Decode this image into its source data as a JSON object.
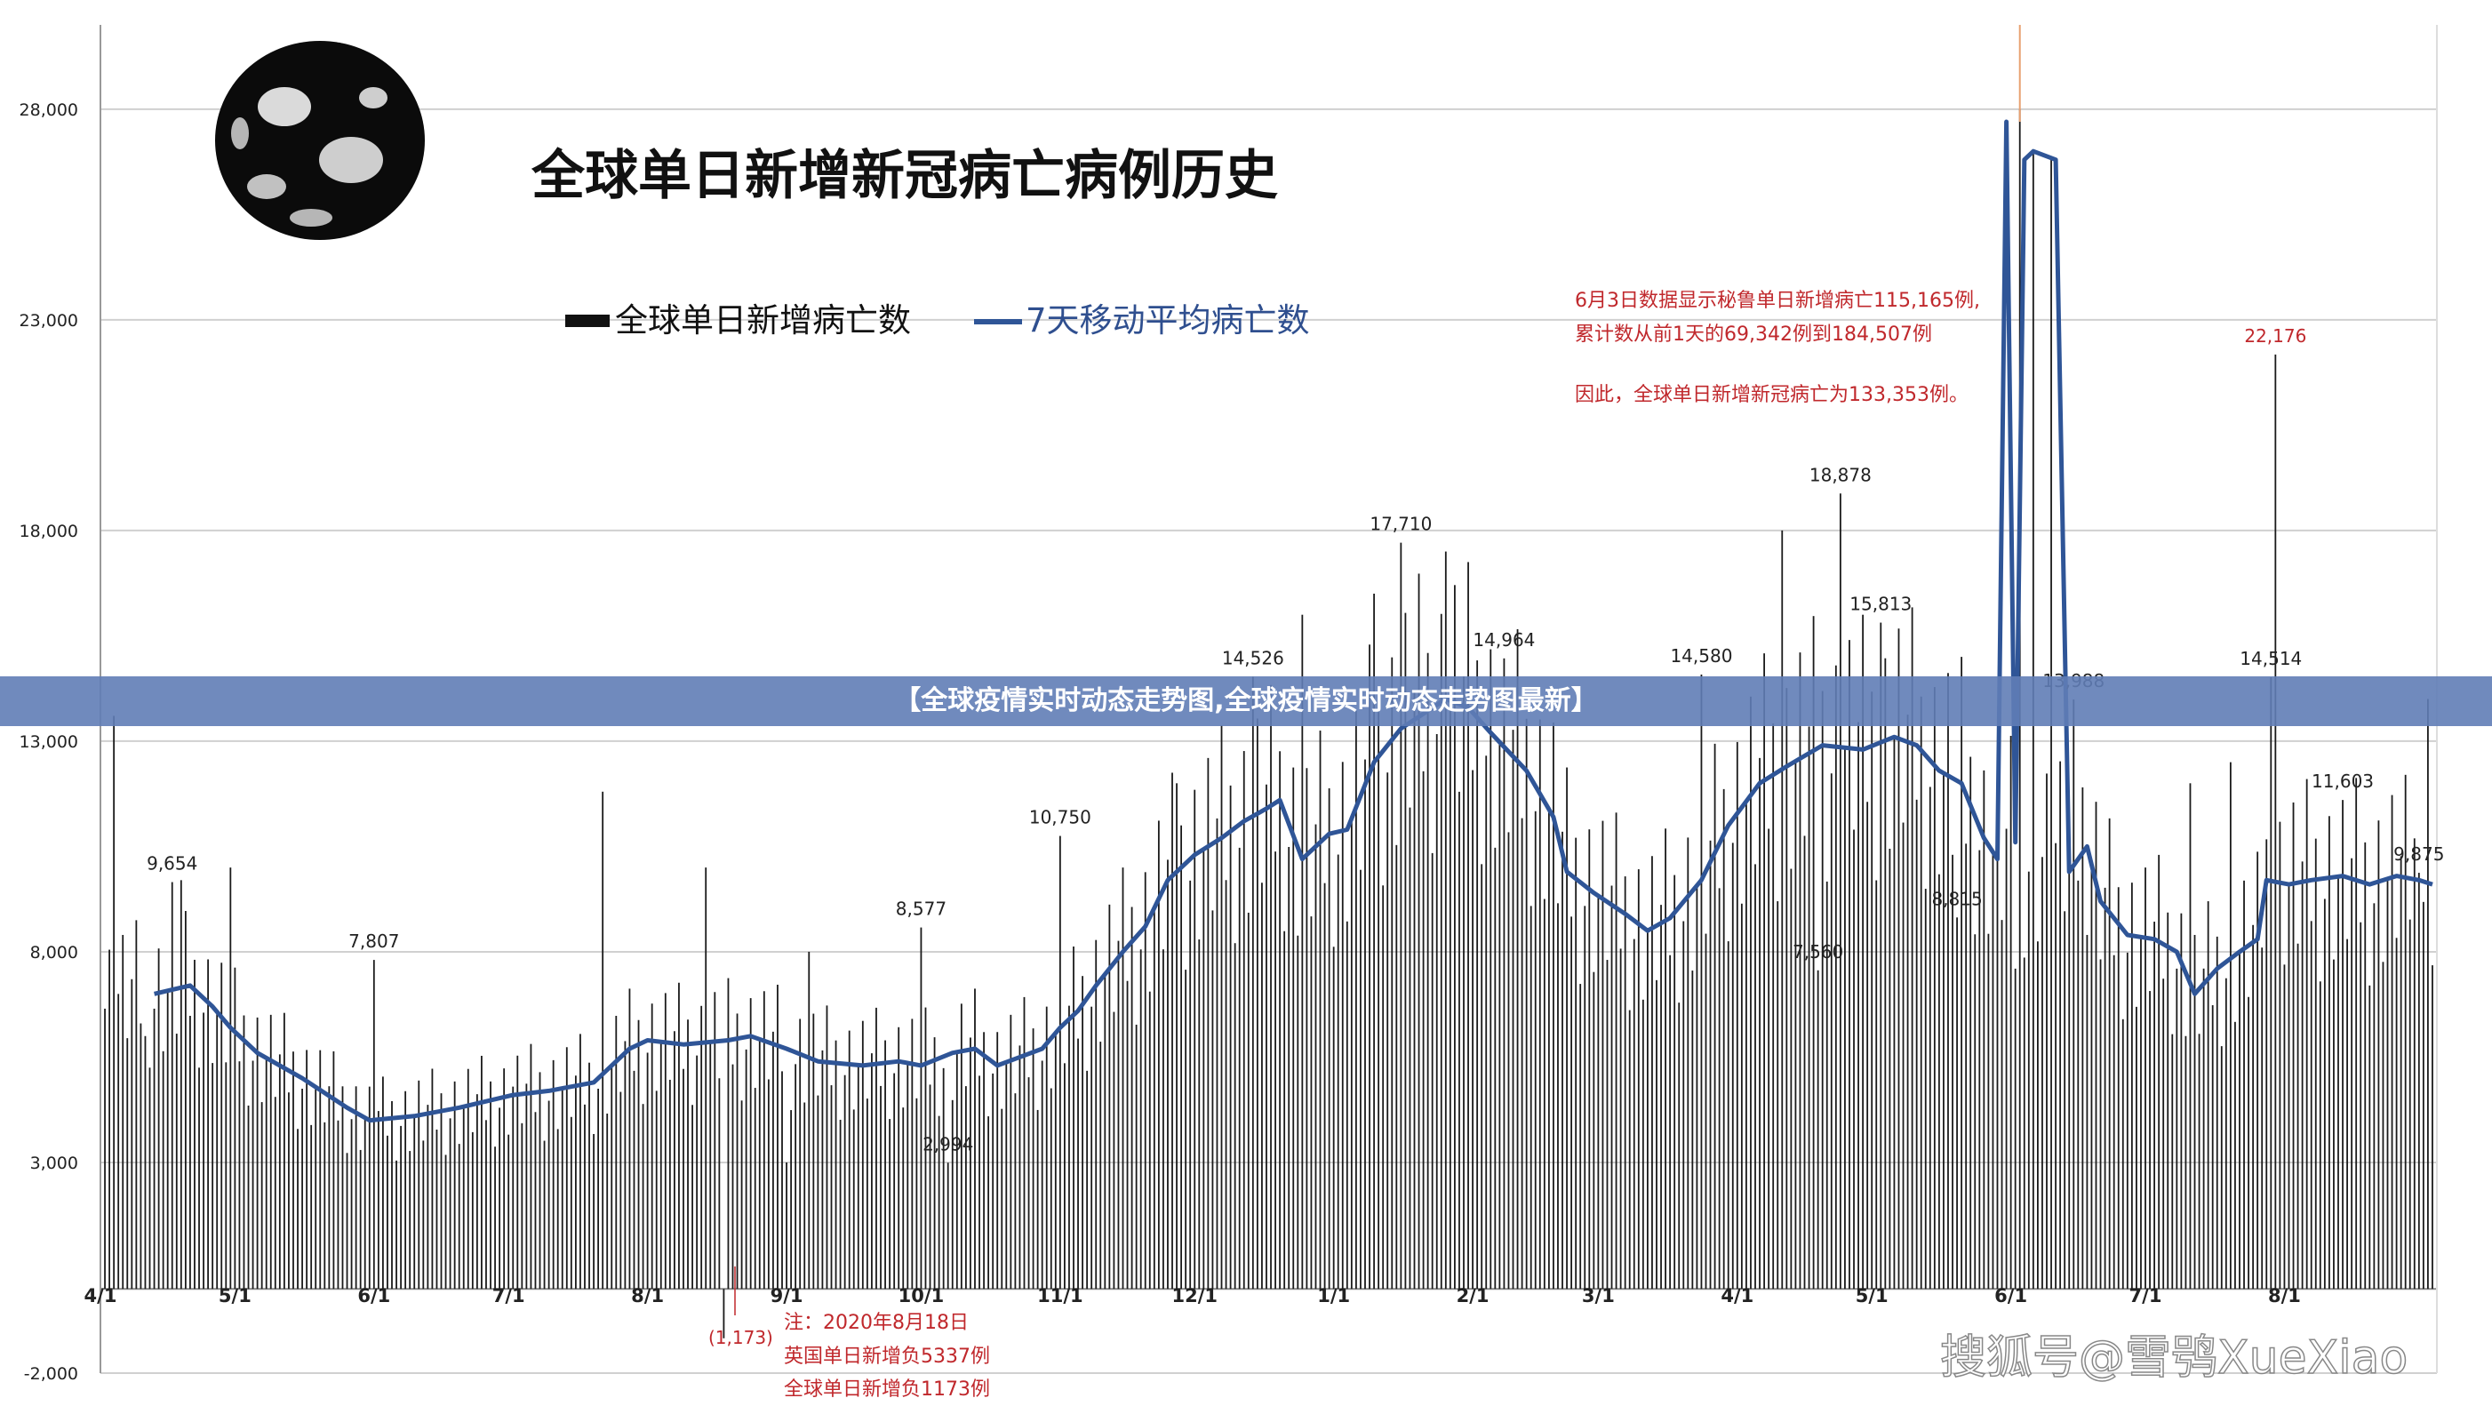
{
  "banner": "【全球疫情实时动态走势图,全球疫情实时动态走势图最新】",
  "chart_title": "全球单日新增新冠病亡病例历史",
  "legend": {
    "bar_label": "全球单日新增病亡数",
    "line_label": "7天移动平均病亡数"
  },
  "watermark": "搜狐号@雪鸮XueXiao",
  "notes": {
    "peru_1": "6月3日数据显示秘鲁单日新增病亡115,165例,",
    "peru_2": "累计数从前1天的69,342例到184,507例",
    "peru_3": "因此，全球单日新增新冠病亡为133,353例。",
    "uk_1": "注：2020年8月18日",
    "uk_2": "英国单日新增负5337例",
    "uk_3": "全球单日新增负1173例",
    "neg_value": "(1,173)"
  },
  "colors": {
    "bar": "#1a1a1a",
    "line": "#2f5597",
    "annotation": "#c0282c",
    "grid": "#d0d0d0"
  },
  "chart_data": {
    "type": "bar",
    "ylim": [
      -2000,
      30000
    ],
    "y_ticks": [
      "-2,000",
      "3,000",
      "8,000",
      "13,000",
      "18,000",
      "23,000",
      "28,000"
    ],
    "y_tick_values": [
      -2000,
      3000,
      8000,
      13000,
      18000,
      23000,
      28000
    ],
    "x_tick_labels": [
      "4/1",
      "5/1",
      "6/1",
      "7/1",
      "8/1",
      "9/1",
      "10/1",
      "11/1",
      "12/1",
      "1/1",
      "2/1",
      "3/1",
      "4/1",
      "5/1",
      "6/1",
      "7/1",
      "8/1"
    ],
    "x_tick_days": [
      0,
      30,
      61,
      91,
      122,
      153,
      183,
      214,
      244,
      275,
      306,
      334,
      365,
      395,
      426,
      456,
      487
    ],
    "series": [
      {
        "name": "全球单日新增病亡数",
        "kind": "bar",
        "points": [
          [
            0,
            6500
          ],
          [
            3,
            13600
          ],
          [
            10,
            6000
          ],
          [
            16,
            9654
          ],
          [
            18,
            9700
          ],
          [
            29,
            10000
          ],
          [
            61,
            7807
          ],
          [
            92,
            4800
          ],
          [
            112,
            11800
          ],
          [
            135,
            10000
          ],
          [
            153,
            3000
          ],
          [
            158,
            8000
          ],
          [
            183,
            8577
          ],
          [
            189,
            2994
          ],
          [
            214,
            10750
          ],
          [
            240,
            12000
          ],
          [
            257,
            14526
          ],
          [
            268,
            16000
          ],
          [
            284,
            16500
          ],
          [
            290,
            17710
          ],
          [
            300,
            17500
          ],
          [
            313,
            14964
          ],
          [
            357,
            14580
          ],
          [
            375,
            18000
          ],
          [
            383,
            7560
          ],
          [
            388,
            18878
          ],
          [
            397,
            15813
          ],
          [
            414,
            8815
          ],
          [
            427,
            7600
          ],
          [
            428,
            28000
          ],
          [
            431,
            27000
          ],
          [
            435,
            26800
          ],
          [
            440,
            13988
          ],
          [
            466,
            12000
          ],
          [
            475,
            12500
          ],
          [
            484,
            14514
          ],
          [
            485,
            22176
          ],
          [
            500,
            11603
          ],
          [
            517,
            9875
          ],
          [
            519,
            14000
          ]
        ],
        "value_labels": [
          {
            "x": 16,
            "y": 9654,
            "text": "9,654"
          },
          {
            "x": 61,
            "y": 7807,
            "text": "7,807"
          },
          {
            "x": 183,
            "y": 8577,
            "text": "8,577"
          },
          {
            "x": 189,
            "y": 2994,
            "text": "2,994"
          },
          {
            "x": 214,
            "y": 10750,
            "text": "10,750"
          },
          {
            "x": 257,
            "y": 14526,
            "text": "14,526"
          },
          {
            "x": 290,
            "y": 17710,
            "text": "17,710"
          },
          {
            "x": 313,
            "y": 14964,
            "text": "14,964"
          },
          {
            "x": 357,
            "y": 14580,
            "text": "14,580"
          },
          {
            "x": 383,
            "y": 7560,
            "text": "7,560"
          },
          {
            "x": 388,
            "y": 18878,
            "text": "18,878"
          },
          {
            "x": 397,
            "y": 15813,
            "text": "15,813"
          },
          {
            "x": 414,
            "y": 8815,
            "text": "8,815"
          },
          {
            "x": 440,
            "y": 13988,
            "text": "13,988"
          },
          {
            "x": 484,
            "y": 14514,
            "text": "14,514"
          },
          {
            "x": 485,
            "y": 22176,
            "text": "22,176"
          },
          {
            "x": 500,
            "y": 11603,
            "text": "11,603"
          },
          {
            "x": 517,
            "y": 9875,
            "text": "9,875"
          }
        ]
      },
      {
        "name": "7天移动平均病亡数",
        "kind": "line",
        "points": [
          [
            12,
            7000
          ],
          [
            16,
            7100
          ],
          [
            20,
            7200
          ],
          [
            25,
            6700
          ],
          [
            29,
            6200
          ],
          [
            35,
            5600
          ],
          [
            45,
            5000
          ],
          [
            55,
            4300
          ],
          [
            60,
            4000
          ],
          [
            70,
            4100
          ],
          [
            80,
            4300
          ],
          [
            92,
            4600
          ],
          [
            100,
            4700
          ],
          [
            110,
            4900
          ],
          [
            114,
            5300
          ],
          [
            118,
            5700
          ],
          [
            122,
            5900
          ],
          [
            130,
            5800
          ],
          [
            140,
            5900
          ],
          [
            145,
            6000
          ],
          [
            153,
            5700
          ],
          [
            160,
            5400
          ],
          [
            170,
            5300
          ],
          [
            178,
            5400
          ],
          [
            183,
            5300
          ],
          [
            190,
            5600
          ],
          [
            195,
            5700
          ],
          [
            200,
            5300
          ],
          [
            210,
            5700
          ],
          [
            214,
            6200
          ],
          [
            218,
            6600
          ],
          [
            222,
            7200
          ],
          [
            228,
            8000
          ],
          [
            233,
            8600
          ],
          [
            238,
            9700
          ],
          [
            244,
            10300
          ],
          [
            250,
            10700
          ],
          [
            255,
            11100
          ],
          [
            260,
            11400
          ],
          [
            263,
            11600
          ],
          [
            268,
            10200
          ],
          [
            274,
            10800
          ],
          [
            278,
            10900
          ],
          [
            284,
            12500
          ],
          [
            290,
            13300
          ],
          [
            300,
            14000
          ],
          [
            305,
            13800
          ],
          [
            310,
            13200
          ],
          [
            318,
            12300
          ],
          [
            324,
            11200
          ],
          [
            327,
            9900
          ],
          [
            333,
            9400
          ],
          [
            340,
            8900
          ],
          [
            345,
            8500
          ],
          [
            350,
            8800
          ],
          [
            357,
            9700
          ],
          [
            363,
            11000
          ],
          [
            370,
            12000
          ],
          [
            376,
            12400
          ],
          [
            384,
            12900
          ],
          [
            393,
            12800
          ],
          [
            400,
            13100
          ],
          [
            405,
            12900
          ],
          [
            410,
            12300
          ],
          [
            415,
            12000
          ],
          [
            420,
            10700
          ],
          [
            423,
            10200
          ],
          [
            425,
            27700
          ],
          [
            427,
            10600
          ],
          [
            429,
            26800
          ],
          [
            431,
            27000
          ],
          [
            436,
            26800
          ],
          [
            439,
            9900
          ],
          [
            443,
            10500
          ],
          [
            446,
            9200
          ],
          [
            452,
            8400
          ],
          [
            458,
            8300
          ],
          [
            463,
            8000
          ],
          [
            467,
            7000
          ],
          [
            472,
            7600
          ],
          [
            477,
            8000
          ],
          [
            481,
            8300
          ],
          [
            483,
            9700
          ],
          [
            488,
            9600
          ],
          [
            493,
            9700
          ],
          [
            500,
            9800
          ],
          [
            506,
            9600
          ],
          [
            512,
            9800
          ],
          [
            517,
            9700
          ],
          [
            520,
            9600
          ]
        ]
      }
    ]
  }
}
